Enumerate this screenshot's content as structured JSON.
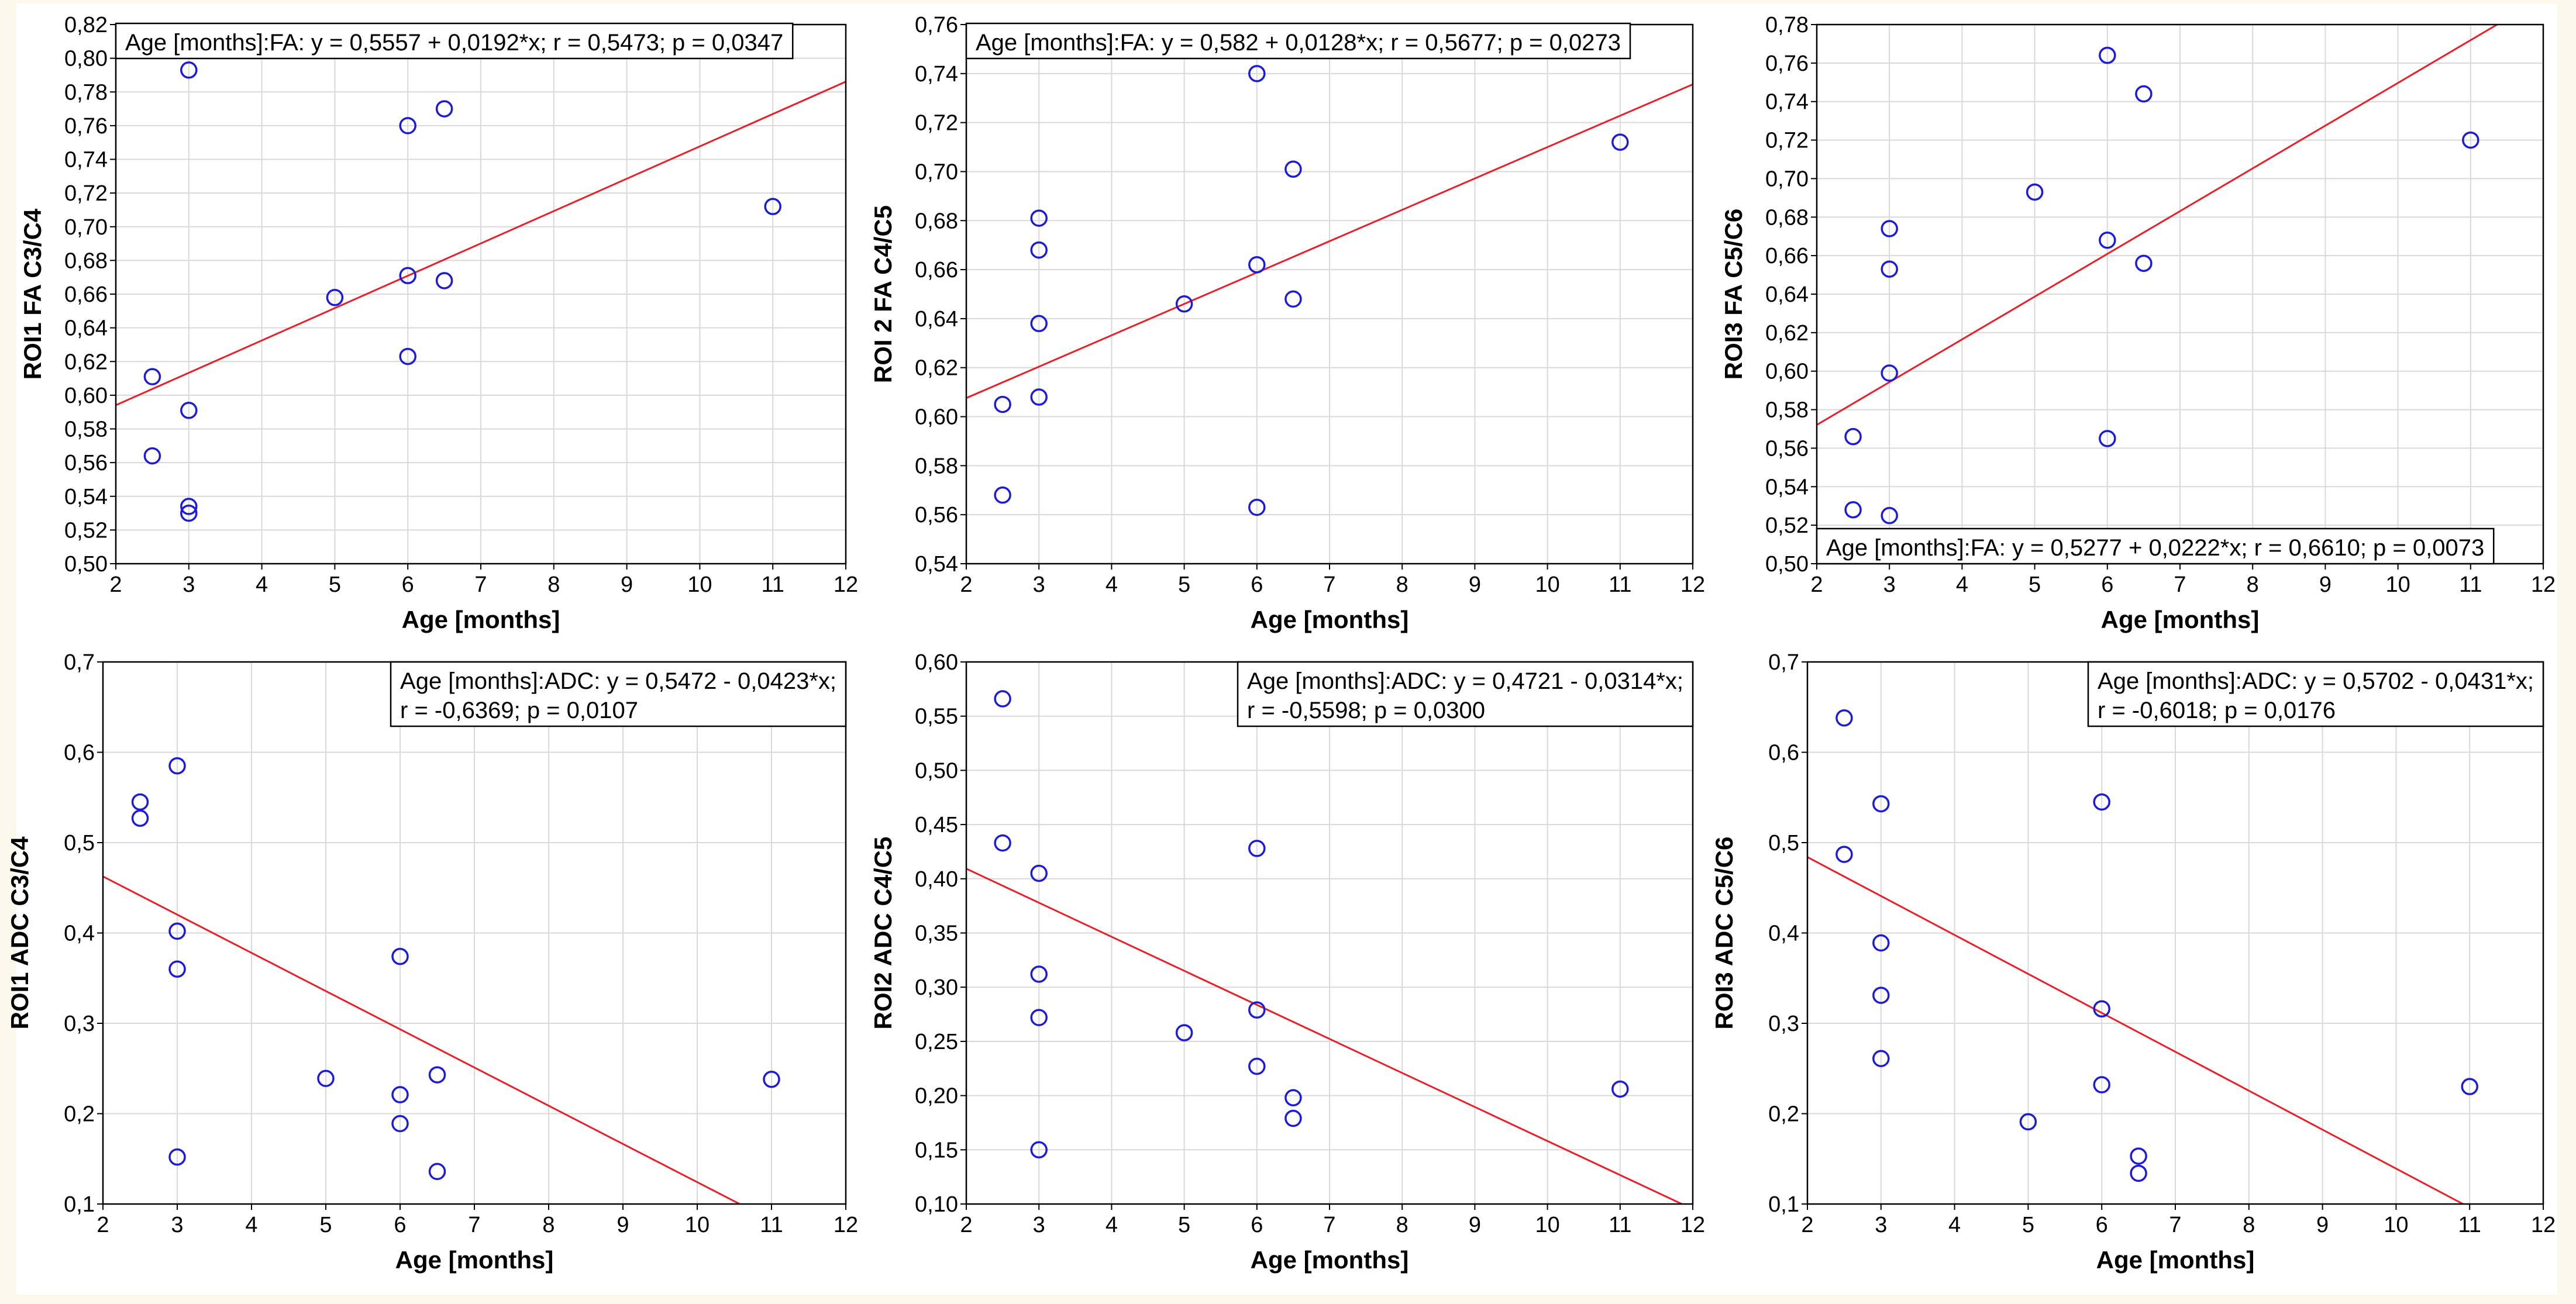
{
  "chart_data": [
    {
      "type": "scatter",
      "xlabel": "Age [months]",
      "ylabel": "ROI1 FA C3/C4",
      "xlim": [
        2,
        12
      ],
      "ylim": [
        0.5,
        0.82
      ],
      "xticks": [
        "2",
        "3",
        "4",
        "5",
        "6",
        "7",
        "8",
        "9",
        "10",
        "11",
        "12"
      ],
      "yticks": [
        "0,50",
        "0,52",
        "0,54",
        "0,56",
        "0,58",
        "0,60",
        "0,62",
        "0,64",
        "0,66",
        "0,68",
        "0,70",
        "0,72",
        "0,74",
        "0,76",
        "0,78",
        "0,80",
        "0,82"
      ],
      "points": [
        [
          2.5,
          0.611
        ],
        [
          2.5,
          0.564
        ],
        [
          3,
          0.793
        ],
        [
          3,
          0.591
        ],
        [
          3,
          0.534
        ],
        [
          3,
          0.53
        ],
        [
          5,
          0.658
        ],
        [
          6,
          0.76
        ],
        [
          6,
          0.671
        ],
        [
          6,
          0.623
        ],
        [
          6.5,
          0.77
        ],
        [
          6.5,
          0.668
        ],
        [
          11,
          0.712
        ]
      ],
      "fit": {
        "intercept": 0.5557,
        "slope": 0.0192
      },
      "legend": [
        "Age [months]:FA:   y = 0,5557 + 0,0192*x;  r = 0,5473; p = 0,0347"
      ],
      "legend_position": "top-left"
    },
    {
      "type": "scatter",
      "xlabel": "Age [months]",
      "ylabel": "ROI 2 FA C4/C5",
      "xlim": [
        2,
        12
      ],
      "ylim": [
        0.54,
        0.76
      ],
      "xticks": [
        "2",
        "3",
        "4",
        "5",
        "6",
        "7",
        "8",
        "9",
        "10",
        "11",
        "12"
      ],
      "yticks": [
        "0,54",
        "0,56",
        "0,58",
        "0,60",
        "0,62",
        "0,64",
        "0,66",
        "0,68",
        "0,70",
        "0,72",
        "0,74",
        "0,76"
      ],
      "points": [
        [
          2.5,
          0.605
        ],
        [
          2.5,
          0.568
        ],
        [
          3,
          0.681
        ],
        [
          3,
          0.668
        ],
        [
          3,
          0.638
        ],
        [
          3,
          0.608
        ],
        [
          5,
          0.646
        ],
        [
          6,
          0.74
        ],
        [
          6,
          0.662
        ],
        [
          6,
          0.563
        ],
        [
          6.5,
          0.701
        ],
        [
          6.5,
          0.648
        ],
        [
          11,
          0.712
        ]
      ],
      "fit": {
        "intercept": 0.582,
        "slope": 0.0128
      },
      "legend": [
        "Age [months]:FA:   y = 0,582 + 0,0128*x;  r = 0,5677; p = 0,0273"
      ],
      "legend_position": "top-left"
    },
    {
      "type": "scatter",
      "xlabel": "Age [months]",
      "ylabel": "ROI3 FA C5/C6",
      "xlim": [
        2,
        12
      ],
      "ylim": [
        0.5,
        0.78
      ],
      "xticks": [
        "2",
        "3",
        "4",
        "5",
        "6",
        "7",
        "8",
        "9",
        "10",
        "11",
        "12"
      ],
      "yticks": [
        "0,50",
        "0,52",
        "0,54",
        "0,56",
        "0,58",
        "0,60",
        "0,62",
        "0,64",
        "0,66",
        "0,68",
        "0,70",
        "0,72",
        "0,74",
        "0,76",
        "0,78"
      ],
      "points": [
        [
          2.5,
          0.566
        ],
        [
          2.5,
          0.528
        ],
        [
          3,
          0.674
        ],
        [
          3,
          0.653
        ],
        [
          3,
          0.599
        ],
        [
          3,
          0.525
        ],
        [
          5,
          0.693
        ],
        [
          6,
          0.764
        ],
        [
          6,
          0.668
        ],
        [
          6,
          0.565
        ],
        [
          6.5,
          0.744
        ],
        [
          6.5,
          0.656
        ],
        [
          11,
          0.72
        ]
      ],
      "fit": {
        "intercept": 0.5277,
        "slope": 0.0222
      },
      "legend": [
        "Age [months]:FA:   y = 0,5277 + 0,0222*x;  r = 0,6610; p = 0,0073"
      ],
      "legend_position": "bottom-left"
    },
    {
      "type": "scatter",
      "xlabel": "Age [months]",
      "ylabel": "ROI1 ADC C3/C4",
      "xlim": [
        2,
        12
      ],
      "ylim": [
        0.1,
        0.7
      ],
      "xticks": [
        "2",
        "3",
        "4",
        "5",
        "6",
        "7",
        "8",
        "9",
        "10",
        "11",
        "12"
      ],
      "yticks": [
        "0,1",
        "0,2",
        "0,3",
        "0,4",
        "0,5",
        "0,6",
        "0,7"
      ],
      "points": [
        [
          2.5,
          0.545
        ],
        [
          2.5,
          0.527
        ],
        [
          3,
          0.585
        ],
        [
          3,
          0.402
        ],
        [
          3,
          0.36
        ],
        [
          3,
          0.152
        ],
        [
          5,
          0.239
        ],
        [
          6,
          0.374
        ],
        [
          6,
          0.221
        ],
        [
          6,
          0.189
        ],
        [
          6.5,
          0.243
        ],
        [
          6.5,
          0.136
        ],
        [
          11,
          0.238
        ]
      ],
      "fit": {
        "intercept": 0.5472,
        "slope": -0.0423
      },
      "legend": [
        "Age [months]:ADC:   y = 0,5472 - 0,0423*x;",
        "r = -0,6369; p = 0,0107"
      ],
      "legend_position": "top-right"
    },
    {
      "type": "scatter",
      "xlabel": "Age [months]",
      "ylabel": "ROI2 ADC C4/C5",
      "xlim": [
        2,
        12
      ],
      "ylim": [
        0.1,
        0.6
      ],
      "xticks": [
        "2",
        "3",
        "4",
        "5",
        "6",
        "7",
        "8",
        "9",
        "10",
        "11",
        "12"
      ],
      "yticks": [
        "0,10",
        "0,15",
        "0,20",
        "0,25",
        "0,30",
        "0,35",
        "0,40",
        "0,45",
        "0,50",
        "0,55",
        "0,60"
      ],
      "points": [
        [
          2.5,
          0.566
        ],
        [
          2.5,
          0.433
        ],
        [
          3,
          0.405
        ],
        [
          3,
          0.312
        ],
        [
          3,
          0.272
        ],
        [
          3,
          0.15
        ],
        [
          5,
          0.258
        ],
        [
          6,
          0.428
        ],
        [
          6,
          0.279
        ],
        [
          6,
          0.227
        ],
        [
          6.5,
          0.198
        ],
        [
          6.5,
          0.179
        ],
        [
          11,
          0.206
        ]
      ],
      "fit": {
        "intercept": 0.4721,
        "slope": -0.0314
      },
      "legend": [
        "Age [months]:ADC:   y = 0,4721 - 0,0314*x;",
        "r = -0,5598; p = 0,0300"
      ],
      "legend_position": "top-right"
    },
    {
      "type": "scatter",
      "xlabel": "Age [months]",
      "ylabel": "ROI3 ADC C5/C6",
      "xlim": [
        2,
        12
      ],
      "ylim": [
        0.1,
        0.7
      ],
      "xticks": [
        "2",
        "3",
        "4",
        "5",
        "6",
        "7",
        "8",
        "9",
        "10",
        "11",
        "12"
      ],
      "yticks": [
        "0,1",
        "0,2",
        "0,3",
        "0,4",
        "0,5",
        "0,6",
        "0,7"
      ],
      "points": [
        [
          2.5,
          0.638
        ],
        [
          2.5,
          0.487
        ],
        [
          3,
          0.543
        ],
        [
          3,
          0.389
        ],
        [
          3,
          0.331
        ],
        [
          3,
          0.261
        ],
        [
          5,
          0.191
        ],
        [
          6,
          0.545
        ],
        [
          6,
          0.316
        ],
        [
          6,
          0.232
        ],
        [
          6.5,
          0.153
        ],
        [
          6.5,
          0.134
        ],
        [
          11,
          0.23
        ]
      ],
      "fit": {
        "intercept": 0.5702,
        "slope": -0.0431
      },
      "legend": [
        "Age [months]:ADC:   y = 0,5702 - 0,0431*x;",
        "r = -0,6018; p = 0,0176"
      ],
      "legend_position": "top-right"
    }
  ],
  "colors": {
    "point": "#1c1cd8",
    "fit_line": "#e8202a",
    "grid": "#d9d9d9",
    "axis": "#000000"
  }
}
